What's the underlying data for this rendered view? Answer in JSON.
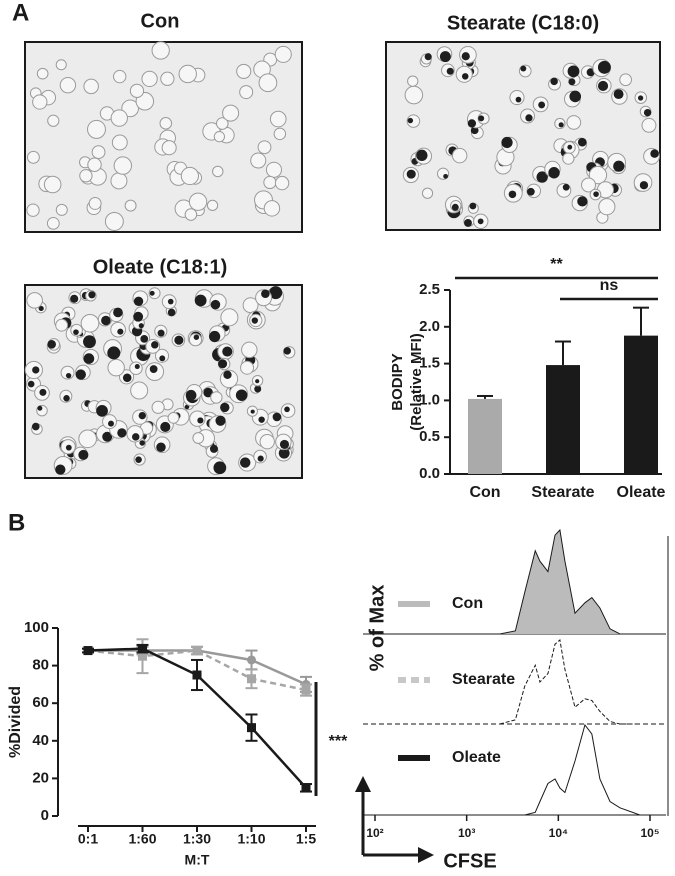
{
  "panel_labels": [
    "A",
    "B"
  ],
  "images": [
    {
      "title": "Con"
    },
    {
      "title": "Stearate (C18:0)"
    },
    {
      "title": "Oleate (C18:1)"
    }
  ],
  "chart_data": [
    {
      "type": "bar",
      "ylabel": [
        "BODIPY",
        "(Relative MFI)"
      ],
      "categories": [
        "Con",
        "Stearate",
        "Oleate"
      ],
      "values": [
        1.02,
        1.48,
        1.88
      ],
      "errors": [
        0.04,
        0.32,
        0.38
      ],
      "colors": [
        "#aaaaaa",
        "#1a1a1a",
        "#1a1a1a"
      ],
      "ylim": [
        0,
        2.5
      ],
      "yticks": [
        {
          "value": 0,
          "label": "0.0"
        },
        0.5,
        {
          "value": 1,
          "label": "1.0"
        },
        1.5,
        {
          "value": 2,
          "label": "2.0"
        },
        2.5
      ],
      "brackets": [
        {
          "label": "**",
          "from": "Con",
          "to": "Oleate"
        },
        {
          "label": "ns",
          "from": "Stearate",
          "to": "Oleate"
        }
      ]
    },
    {
      "type": "line",
      "xlabel": "M:T",
      "ylabel": "%Divided",
      "categories": [
        "0:1",
        "1:60",
        "1:30",
        "1:10",
        "1:5"
      ],
      "series": [
        {
          "color": "#999999",
          "dash": false,
          "marker": "circle",
          "values": [
            88,
            88,
            88,
            83,
            70
          ],
          "errors": [
            1,
            2,
            2,
            5,
            4
          ]
        },
        {
          "color": "#a6a6a6",
          "dash": true,
          "marker": "square",
          "values": [
            88,
            85,
            88,
            73,
            67
          ],
          "errors": [
            1,
            9,
            2,
            5,
            3
          ]
        },
        {
          "color": "#1a1a1a",
          "dash": false,
          "marker": "square",
          "values": [
            88,
            89,
            75,
            47,
            15
          ],
          "errors": [
            1,
            2,
            8,
            7,
            2
          ]
        }
      ],
      "ylim": [
        0,
        100
      ],
      "yticks": [
        0,
        20,
        40,
        60,
        80,
        100
      ],
      "annotation": "***"
    },
    {
      "type": "density",
      "xlabel": "CFSE",
      "ylabel": "% of Max",
      "xscale": "log",
      "x": [
        2300,
        3400,
        4300,
        5600,
        6300,
        7700,
        9200,
        10400,
        11800,
        15200,
        19500,
        23200,
        28400,
        36600,
        47000,
        77600
      ],
      "series": [
        {
          "name": "Con",
          "color": "#bbbbbb",
          "fill": true,
          "dash": false,
          "values": [
            0,
            3,
            40,
            80,
            70,
            60,
            95,
            100,
            70,
            20,
            30,
            35,
            25,
            5,
            0,
            0
          ]
        },
        {
          "name": "Stearate",
          "color": "#c8c8c8",
          "fill": false,
          "dash": true,
          "values": [
            0,
            5,
            45,
            70,
            50,
            60,
            95,
            100,
            65,
            20,
            30,
            28,
            15,
            3,
            0,
            0
          ]
        },
        {
          "name": "Oleate",
          "color": "#1a1a1a",
          "fill": false,
          "dash": false,
          "values": [
            0,
            0,
            0,
            3,
            15,
            35,
            40,
            30,
            25,
            60,
            100,
            90,
            40,
            15,
            8,
            0
          ]
        }
      ],
      "xlim": [
        100,
        100000
      ],
      "ylim": [
        0,
        100
      ],
      "xticks": [
        {
          "value": 100,
          "label": "10²"
        },
        {
          "value": 1000,
          "label": "10³"
        },
        {
          "value": 10000,
          "label": "10⁴"
        },
        {
          "value": 100000,
          "label": "10⁵"
        }
      ]
    }
  ]
}
